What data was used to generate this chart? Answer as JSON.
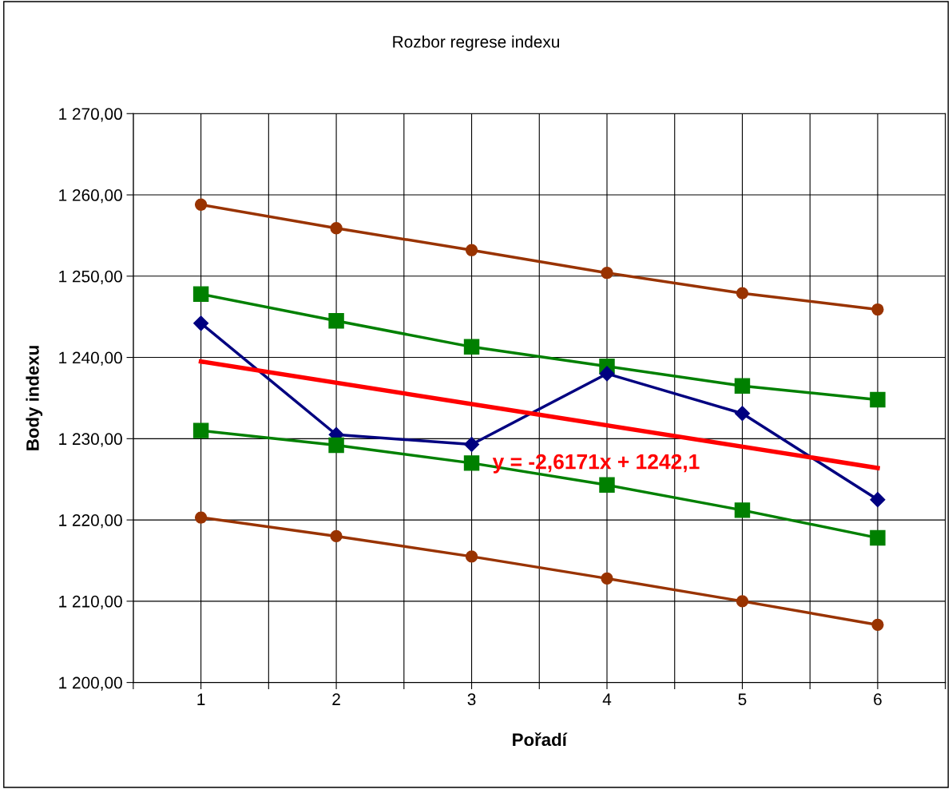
{
  "chart_data": {
    "type": "line",
    "title": "Rozbor regrese indexu",
    "xlabel": "Pořadí",
    "ylabel": "Body indexu",
    "x": [
      1,
      2,
      3,
      4,
      5,
      6
    ],
    "xlim": [
      0.5,
      6.5
    ],
    "xticks": [
      {
        "value": 0.5,
        "label": null
      },
      1,
      {
        "value": 1.5,
        "label": null
      },
      2,
      {
        "value": 2.5,
        "label": null
      },
      3,
      {
        "value": 3.5,
        "label": null
      },
      4,
      {
        "value": 4.5,
        "label": null
      },
      5,
      {
        "value": 5.5,
        "label": null
      },
      6,
      {
        "value": 6.5,
        "label": null
      }
    ],
    "ylim": [
      1200,
      1270
    ],
    "yticks": [
      {
        "value": 1200,
        "label": "1 200,00"
      },
      {
        "value": 1210,
        "label": "1 210,00"
      },
      {
        "value": 1220,
        "label": "1 220,00"
      },
      {
        "value": 1230,
        "label": "1 230,00"
      },
      {
        "value": 1240,
        "label": "1 240,00"
      },
      {
        "value": 1250,
        "label": "1 250,00"
      },
      {
        "value": 1260,
        "label": "1 260,00"
      },
      {
        "value": 1270,
        "label": "1 270,00"
      }
    ],
    "grid": true,
    "legend": false,
    "series": [
      {
        "color": "#993300",
        "marker": "circle",
        "values": [
          1258.8,
          1255.9,
          1253.2,
          1250.4,
          1247.9,
          1245.9
        ]
      },
      {
        "color": "#008000",
        "marker": "square",
        "values": [
          1247.8,
          1244.5,
          1241.3,
          1238.9,
          1236.5,
          1234.8
        ]
      },
      {
        "color": "#000080",
        "marker": "diamond",
        "values": [
          1244.2,
          1230.5,
          1229.3,
          1238.0,
          1233.1,
          1222.5
        ]
      },
      {
        "color": "#008000",
        "marker": "square",
        "values": [
          1231.0,
          1229.2,
          1227.0,
          1224.3,
          1221.2,
          1217.8
        ]
      },
      {
        "color": "#993300",
        "marker": "circle",
        "values": [
          1220.3,
          1218.0,
          1215.5,
          1212.8,
          1210.0,
          1207.1
        ]
      },
      {
        "color": "#ff0000",
        "marker": "none",
        "x": [
          1,
          6
        ],
        "values": [
          1239.5,
          1226.4
        ]
      }
    ],
    "annotations": [
      "y = -2,6171x + 1242,1"
    ]
  }
}
